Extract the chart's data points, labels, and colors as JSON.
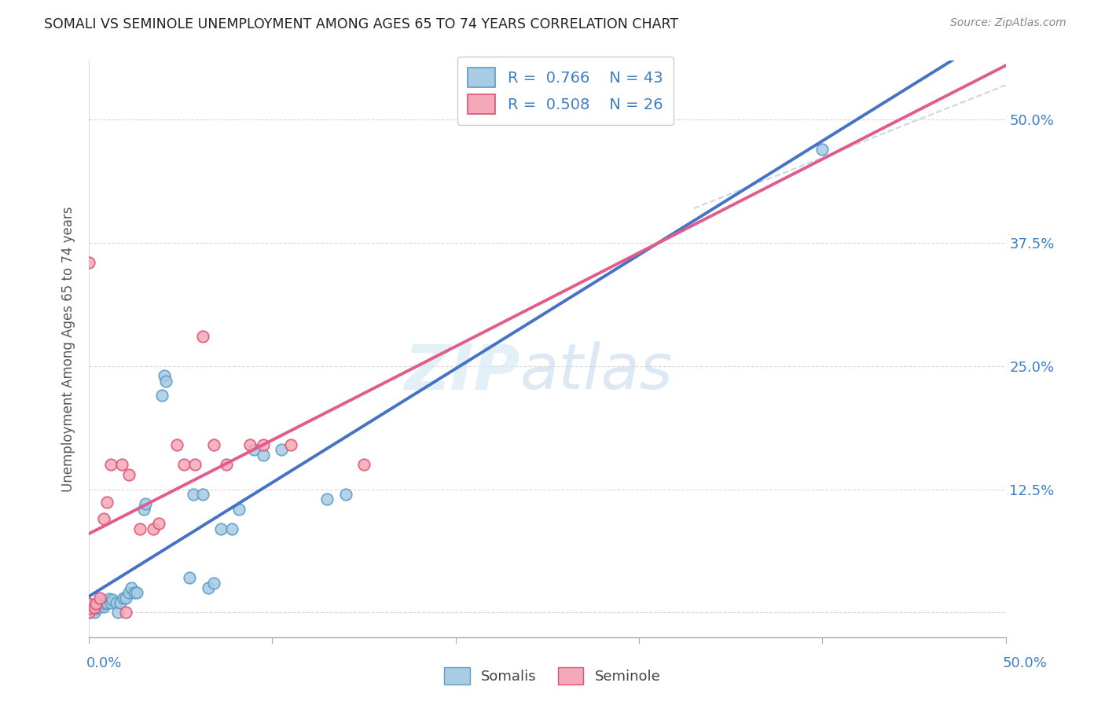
{
  "title": "SOMALI VS SEMINOLE UNEMPLOYMENT AMONG AGES 65 TO 74 YEARS CORRELATION CHART",
  "source": "Source: ZipAtlas.com",
  "ylabel": "Unemployment Among Ages 65 to 74 years",
  "xmin": 0.0,
  "xmax": 0.5,
  "ymin": -0.025,
  "ymax": 0.56,
  "yticks": [
    0.0,
    0.125,
    0.25,
    0.375,
    0.5
  ],
  "ytick_labels": [
    "",
    "12.5%",
    "25.0%",
    "37.5%",
    "50.0%"
  ],
  "somali_R": 0.766,
  "somali_N": 43,
  "seminole_R": 0.508,
  "seminole_N": 26,
  "somali_color": "#a8cce4",
  "seminole_color": "#f4a9b8",
  "somali_edge_color": "#5b9bc8",
  "seminole_edge_color": "#e05075",
  "somali_line_color": "#4472c4",
  "seminole_line_color": "#e05c8a",
  "somali_x": [
    0.0,
    0.0,
    0.0,
    0.0,
    0.003,
    0.004,
    0.005,
    0.006,
    0.007,
    0.008,
    0.009,
    0.01,
    0.011,
    0.012,
    0.013,
    0.015,
    0.016,
    0.017,
    0.019,
    0.02,
    0.022,
    0.023,
    0.025,
    0.026,
    0.03,
    0.031,
    0.04,
    0.041,
    0.042,
    0.055,
    0.057,
    0.062,
    0.065,
    0.068,
    0.072,
    0.078,
    0.082,
    0.09,
    0.095,
    0.105,
    0.13,
    0.14,
    0.4
  ],
  "somali_y": [
    0.0,
    0.003,
    0.005,
    0.008,
    0.0,
    0.004,
    0.005,
    0.009,
    0.012,
    0.006,
    0.009,
    0.01,
    0.014,
    0.01,
    0.013,
    0.01,
    0.0,
    0.01,
    0.015,
    0.015,
    0.02,
    0.025,
    0.02,
    0.02,
    0.105,
    0.11,
    0.22,
    0.24,
    0.235,
    0.035,
    0.12,
    0.12,
    0.025,
    0.03,
    0.085,
    0.085,
    0.105,
    0.165,
    0.16,
    0.165,
    0.115,
    0.12,
    0.47
  ],
  "seminole_x": [
    0.0,
    0.0,
    0.0,
    0.0,
    0.003,
    0.004,
    0.006,
    0.008,
    0.01,
    0.012,
    0.018,
    0.02,
    0.022,
    0.028,
    0.035,
    0.038,
    0.048,
    0.052,
    0.058,
    0.062,
    0.068,
    0.075,
    0.088,
    0.095,
    0.11,
    0.15
  ],
  "seminole_y": [
    0.0,
    0.004,
    0.009,
    0.355,
    0.005,
    0.009,
    0.015,
    0.095,
    0.112,
    0.15,
    0.15,
    0.0,
    0.14,
    0.085,
    0.085,
    0.09,
    0.17,
    0.15,
    0.15,
    0.28,
    0.17,
    0.15,
    0.17,
    0.17,
    0.17,
    0.15
  ]
}
